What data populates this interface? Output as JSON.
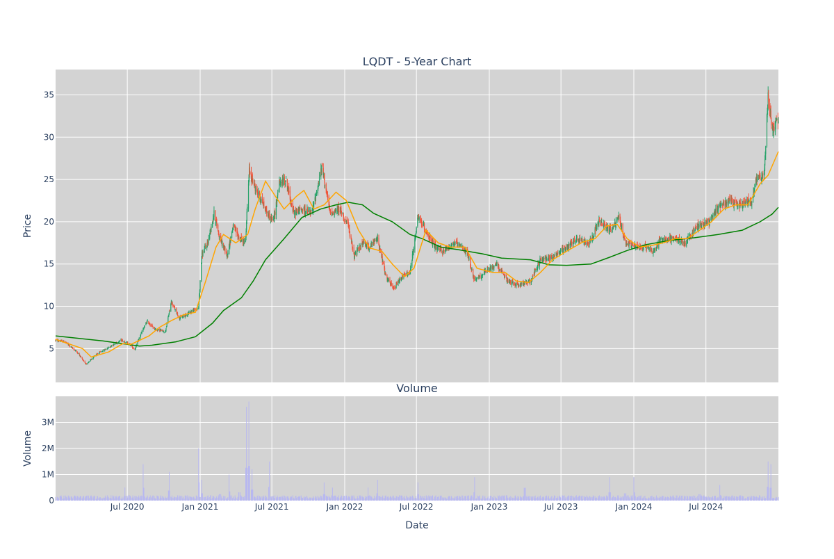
{
  "chart_data": [
    {
      "type": "candlestick",
      "title": "LQDT - 5-Year Chart",
      "xlabel": "",
      "ylabel": "Price",
      "ylim": [
        1,
        38
      ],
      "yticks": [
        5,
        10,
        15,
        20,
        25,
        30,
        35
      ],
      "grid": true,
      "legend": "none",
      "x_start": "2020-01-02",
      "x_end": "2024-12-31",
      "colors": {
        "up": "#26a269",
        "down": "#ef553b",
        "ma_short": "#ffa500",
        "ma_long": "#008000",
        "background": "#d3d3d3",
        "grid": "#ffffff"
      },
      "anchors": [
        [
          "2020-01-02",
          6.0
        ],
        [
          "2020-01-25",
          5.8
        ],
        [
          "2020-02-25",
          4.6
        ],
        [
          "2020-03-20",
          3.1
        ],
        [
          "2020-04-10",
          4.2
        ],
        [
          "2020-05-10",
          5.0
        ],
        [
          "2020-06-15",
          6.0
        ],
        [
          "2020-07-05",
          5.6
        ],
        [
          "2020-07-20",
          4.9
        ],
        [
          "2020-08-05",
          6.8
        ],
        [
          "2020-08-20",
          8.2
        ],
        [
          "2020-09-10",
          7.3
        ],
        [
          "2020-10-05",
          7.0
        ],
        [
          "2020-10-20",
          10.5
        ],
        [
          "2020-11-10",
          8.6
        ],
        [
          "2020-12-10",
          9.4
        ],
        [
          "2020-12-28",
          9.8
        ],
        [
          "2021-01-05",
          16.0
        ],
        [
          "2021-01-20",
          17.5
        ],
        [
          "2021-02-05",
          21.0
        ],
        [
          "2021-02-20",
          18.0
        ],
        [
          "2021-03-10",
          16.0
        ],
        [
          "2021-03-25",
          19.5
        ],
        [
          "2021-04-10",
          18.0
        ],
        [
          "2021-04-25",
          17.5
        ],
        [
          "2021-05-05",
          26.0
        ],
        [
          "2021-05-20",
          24.0
        ],
        [
          "2021-06-05",
          22.5
        ],
        [
          "2021-06-20",
          21.0
        ],
        [
          "2021-07-05",
          20.0
        ],
        [
          "2021-07-20",
          24.5
        ],
        [
          "2021-08-05",
          25.0
        ],
        [
          "2021-08-25",
          21.0
        ],
        [
          "2021-09-15",
          21.5
        ],
        [
          "2021-10-10",
          21.0
        ],
        [
          "2021-11-05",
          26.5
        ],
        [
          "2021-11-25",
          21.0
        ],
        [
          "2021-12-20",
          21.5
        ],
        [
          "2022-01-10",
          19.5
        ],
        [
          "2022-01-25",
          16.0
        ],
        [
          "2022-02-15",
          17.5
        ],
        [
          "2022-03-05",
          17.0
        ],
        [
          "2022-03-25",
          18.0
        ],
        [
          "2022-04-15",
          13.5
        ],
        [
          "2022-05-05",
          12.0
        ],
        [
          "2022-05-25",
          13.5
        ],
        [
          "2022-06-15",
          14.0
        ],
        [
          "2022-07-05",
          20.5
        ],
        [
          "2022-07-25",
          19.0
        ],
        [
          "2022-08-15",
          17.0
        ],
        [
          "2022-09-05",
          16.5
        ],
        [
          "2022-10-05",
          17.5
        ],
        [
          "2022-11-05",
          16.5
        ],
        [
          "2022-11-25",
          13.0
        ],
        [
          "2022-12-20",
          14.0
        ],
        [
          "2023-01-20",
          15.0
        ],
        [
          "2023-02-15",
          13.0
        ],
        [
          "2023-03-15",
          12.5
        ],
        [
          "2023-04-15",
          13.0
        ],
        [
          "2023-05-10",
          15.5
        ],
        [
          "2023-06-15",
          16.0
        ],
        [
          "2023-07-15",
          17.0
        ],
        [
          "2023-08-10",
          18.0
        ],
        [
          "2023-09-10",
          17.5
        ],
        [
          "2023-10-05",
          20.0
        ],
        [
          "2023-11-05",
          19.0
        ],
        [
          "2023-11-25",
          20.5
        ],
        [
          "2023-12-10",
          17.5
        ],
        [
          "2024-01-10",
          17.0
        ],
        [
          "2024-02-05",
          17.0
        ],
        [
          "2024-02-20",
          16.5
        ],
        [
          "2024-03-10",
          18.0
        ],
        [
          "2024-04-10",
          18.0
        ],
        [
          "2024-05-10",
          17.5
        ],
        [
          "2024-06-10",
          19.5
        ],
        [
          "2024-07-10",
          20.0
        ],
        [
          "2024-08-05",
          22.0
        ],
        [
          "2024-08-25",
          22.5
        ],
        [
          "2024-09-25",
          22.0
        ],
        [
          "2024-10-25",
          22.5
        ],
        [
          "2024-11-05",
          25.0
        ],
        [
          "2024-11-25",
          25.5
        ],
        [
          "2024-12-05",
          35.0
        ],
        [
          "2024-12-15",
          31.0
        ],
        [
          "2024-12-31",
          32.0
        ]
      ],
      "ma_short": [
        [
          "2020-01-02",
          6.1
        ],
        [
          "2020-03-10",
          5.0
        ],
        [
          "2020-04-01",
          4.0
        ],
        [
          "2020-05-15",
          4.6
        ],
        [
          "2020-06-20",
          5.6
        ],
        [
          "2020-07-10",
          5.5
        ],
        [
          "2020-08-25",
          6.5
        ],
        [
          "2020-09-20",
          7.5
        ],
        [
          "2020-10-20",
          8.3
        ],
        [
          "2020-11-20",
          9.0
        ],
        [
          "2020-12-20",
          9.3
        ],
        [
          "2021-01-15",
          13.0
        ],
        [
          "2021-02-10",
          17.0
        ],
        [
          "2021-03-01",
          18.5
        ],
        [
          "2021-04-01",
          17.5
        ],
        [
          "2021-05-01",
          18.5
        ],
        [
          "2021-05-20",
          21.5
        ],
        [
          "2021-06-15",
          24.8
        ],
        [
          "2021-07-10",
          23.0
        ],
        [
          "2021-08-01",
          21.5
        ],
        [
          "2021-09-01",
          23.0
        ],
        [
          "2021-09-20",
          23.7
        ],
        [
          "2021-10-15",
          21.5
        ],
        [
          "2021-11-10",
          22.0
        ],
        [
          "2021-12-10",
          23.5
        ],
        [
          "2022-01-05",
          22.5
        ],
        [
          "2022-02-05",
          19.0
        ],
        [
          "2022-03-05",
          16.9
        ],
        [
          "2022-04-05",
          16.5
        ],
        [
          "2022-05-01",
          15.0
        ],
        [
          "2022-06-01",
          13.5
        ],
        [
          "2022-06-25",
          14.5
        ],
        [
          "2022-07-25",
          19.0
        ],
        [
          "2022-08-25",
          17.5
        ],
        [
          "2022-09-25",
          17.0
        ],
        [
          "2022-11-01",
          17.0
        ],
        [
          "2022-12-01",
          14.5
        ],
        [
          "2023-01-10",
          14.0
        ],
        [
          "2023-02-10",
          14.0
        ],
        [
          "2023-03-10",
          13.0
        ],
        [
          "2023-04-10",
          12.8
        ],
        [
          "2023-05-10",
          14.0
        ],
        [
          "2023-06-10",
          15.5
        ],
        [
          "2023-07-15",
          16.5
        ],
        [
          "2023-08-25",
          17.6
        ],
        [
          "2023-09-25",
          18.0
        ],
        [
          "2023-10-25",
          19.5
        ],
        [
          "2023-11-20",
          19.7
        ],
        [
          "2023-12-15",
          18.0
        ],
        [
          "2024-01-15",
          17.0
        ],
        [
          "2024-02-15",
          17.2
        ],
        [
          "2024-03-15",
          17.5
        ],
        [
          "2024-04-15",
          18.0
        ],
        [
          "2024-05-15",
          18.0
        ],
        [
          "2024-06-15",
          19.0
        ],
        [
          "2024-07-15",
          20.0
        ],
        [
          "2024-08-15",
          21.5
        ],
        [
          "2024-09-15",
          22.0
        ],
        [
          "2024-10-15",
          22.0
        ],
        [
          "2024-11-15",
          24.5
        ],
        [
          "2024-12-05",
          25.5
        ],
        [
          "2024-12-31",
          28.3
        ]
      ],
      "ma_long": [
        [
          "2020-01-02",
          6.5
        ],
        [
          "2020-05-01",
          5.9
        ],
        [
          "2020-07-01",
          5.5
        ],
        [
          "2020-08-01",
          5.3
        ],
        [
          "2020-09-01",
          5.4
        ],
        [
          "2020-11-01",
          5.8
        ],
        [
          "2020-12-20",
          6.4
        ],
        [
          "2021-02-01",
          8.0
        ],
        [
          "2021-03-01",
          9.5
        ],
        [
          "2021-04-15",
          11.0
        ],
        [
          "2021-05-15",
          13.0
        ],
        [
          "2021-06-15",
          15.5
        ],
        [
          "2021-08-01",
          18.0
        ],
        [
          "2021-09-15",
          20.5
        ],
        [
          "2021-11-01",
          21.5
        ],
        [
          "2021-12-10",
          22.0
        ],
        [
          "2022-01-10",
          22.3
        ],
        [
          "2022-02-15",
          22.0
        ],
        [
          "2022-03-15",
          21.0
        ],
        [
          "2022-05-01",
          20.0
        ],
        [
          "2022-06-15",
          18.5
        ],
        [
          "2022-07-15",
          18.0
        ],
        [
          "2022-09-01",
          17.0
        ],
        [
          "2022-10-15",
          16.7
        ],
        [
          "2022-12-15",
          16.2
        ],
        [
          "2023-02-01",
          15.7
        ],
        [
          "2023-04-15",
          15.5
        ],
        [
          "2023-06-01",
          14.9
        ],
        [
          "2023-07-15",
          14.85
        ],
        [
          "2023-09-15",
          15.0
        ],
        [
          "2023-11-01",
          15.8
        ],
        [
          "2023-12-15",
          16.6
        ],
        [
          "2024-02-01",
          17.3
        ],
        [
          "2024-04-01",
          17.8
        ],
        [
          "2024-06-01",
          18.1
        ],
        [
          "2024-08-01",
          18.5
        ],
        [
          "2024-10-01",
          19.0
        ],
        [
          "2024-11-15",
          20.0
        ],
        [
          "2024-12-15",
          20.9
        ],
        [
          "2024-12-31",
          21.7
        ]
      ]
    },
    {
      "type": "bar",
      "title": "Volume",
      "xlabel": "Date",
      "ylabel": "Volume",
      "ylim": [
        0,
        4000000
      ],
      "yticks": [
        0,
        1000000,
        2000000,
        3000000
      ],
      "ytick_labels": [
        "0",
        "1M",
        "2M",
        "3M"
      ],
      "xticks": [
        "2020-07-01",
        "2021-01-01",
        "2021-07-01",
        "2022-01-01",
        "2022-07-01",
        "2023-01-01",
        "2023-07-01",
        "2024-01-01",
        "2024-07-01"
      ],
      "xtick_labels": [
        "Jul 2020",
        "Jan 2021",
        "Jul 2021",
        "Jan 2022",
        "Jul 2022",
        "Jan 2023",
        "Jul 2023",
        "Jan 2024",
        "Jul 2024"
      ],
      "base_volume": 120000,
      "bar_color": "#b8b8f0",
      "spikes": [
        [
          "2020-06-25",
          500000
        ],
        [
          "2020-08-10",
          1400000
        ],
        [
          "2020-10-15",
          1100000
        ],
        [
          "2020-12-28",
          2000000
        ],
        [
          "2021-01-05",
          800000
        ],
        [
          "2021-02-20",
          700000
        ],
        [
          "2021-03-15",
          1000000
        ],
        [
          "2021-04-10",
          900000
        ],
        [
          "2021-04-28",
          3600000
        ],
        [
          "2021-05-04",
          3800000
        ],
        [
          "2021-05-12",
          1200000
        ],
        [
          "2021-06-25",
          1500000
        ],
        [
          "2021-11-10",
          700000
        ],
        [
          "2021-12-01",
          500000
        ],
        [
          "2022-03-01",
          500000
        ],
        [
          "2022-03-25",
          800000
        ],
        [
          "2022-07-05",
          700000
        ],
        [
          "2022-11-25",
          900000
        ],
        [
          "2023-04-01",
          1400000
        ],
        [
          "2023-11-01",
          900000
        ],
        [
          "2023-12-10",
          800000
        ],
        [
          "2024-01-01",
          900000
        ],
        [
          "2024-06-15",
          700000
        ],
        [
          "2024-08-05",
          600000
        ],
        [
          "2024-12-05",
          1500000
        ],
        [
          "2024-12-12",
          1400000
        ]
      ]
    }
  ]
}
